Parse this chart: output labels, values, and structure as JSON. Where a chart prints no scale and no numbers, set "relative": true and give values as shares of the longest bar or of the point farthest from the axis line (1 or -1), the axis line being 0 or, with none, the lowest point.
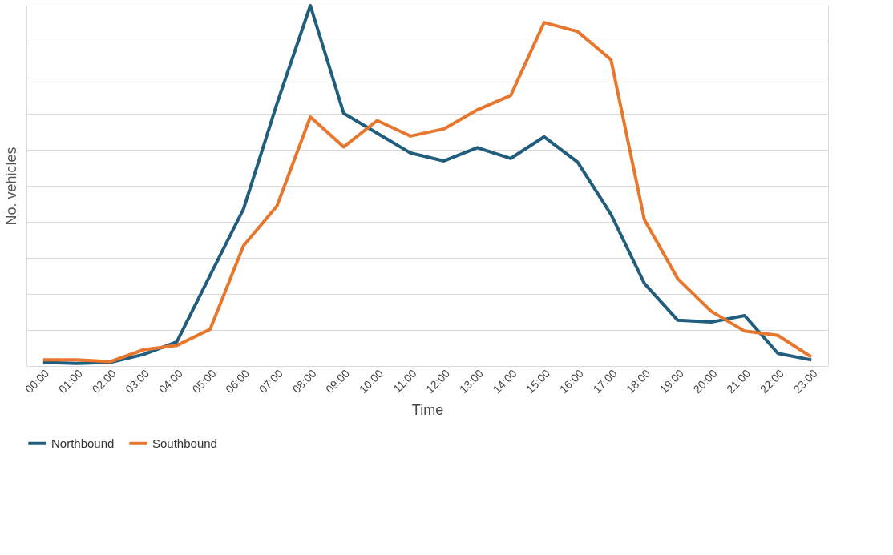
{
  "chart_data": {
    "type": "line",
    "relative": true,
    "xlabel": "Time",
    "ylabel": "No. vehicles",
    "categories": [
      "00:00",
      "01:00",
      "02:00",
      "03:00",
      "04:00",
      "05:00",
      "06:00",
      "07:00",
      "08:00",
      "09:00",
      "10:00",
      "11:00",
      "12:00",
      "13:00",
      "14:00",
      "15:00",
      "16:00",
      "17:00",
      "18:00",
      "19:00",
      "20:00",
      "21:00",
      "22:00",
      "23:00"
    ],
    "series": [
      {
        "name": "Northbound",
        "color": "#215d7c",
        "values": [
          0.01,
          0.007,
          0.01,
          0.032,
          0.067,
          0.252,
          0.436,
          0.728,
          1,
          0.701,
          0.646,
          0.591,
          0.569,
          0.606,
          0.576,
          0.636,
          0.566,
          0.421,
          0.229,
          0.127,
          0.122,
          0.14,
          0.035,
          0.017
        ]
      },
      {
        "name": "Southbound",
        "color": "#e8772e",
        "values": [
          0.017,
          0.017,
          0.012,
          0.045,
          0.057,
          0.102,
          0.334,
          0.444,
          0.691,
          0.608,
          0.681,
          0.638,
          0.658,
          0.711,
          0.751,
          0.953,
          0.928,
          0.85,
          0.406,
          0.242,
          0.152,
          0.097,
          0.085,
          0.025
        ]
      }
    ],
    "grid": "y",
    "legend": "bottom",
    "marker": "none",
    "line_style": "solid"
  }
}
